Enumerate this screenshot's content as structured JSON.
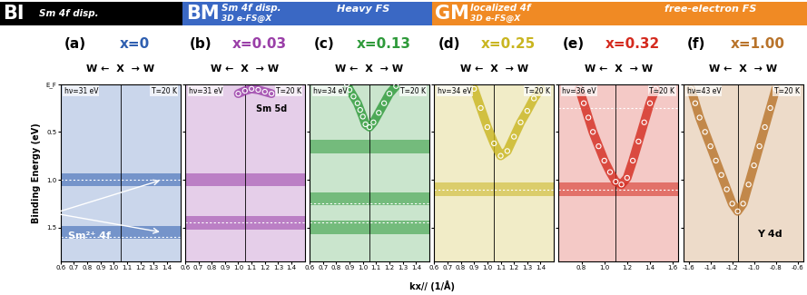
{
  "header": [
    {
      "tag": "BI",
      "lines": [
        "Sm 4f disp."
      ],
      "note": "",
      "color": "#000000",
      "span": 1
    },
    {
      "tag": "BM",
      "lines": [
        "Sm 4f disp.",
        "3D e-FS@X"
      ],
      "note": "Heavy FS",
      "color": "#3a68c4",
      "span": 2
    },
    {
      "tag": "GM",
      "lines": [
        "localized 4f",
        "3D e-FS@X"
      ],
      "note": "free-electron FS",
      "color": "#f08a24",
      "span": 3
    }
  ],
  "direction_label": "W ←  X  → W",
  "ylabel": "Binding Energy (eV)",
  "xlabel": "kx// (1/Å)",
  "chart_data": [
    {
      "type": "scatter",
      "label": "(a)",
      "title": "x=0",
      "color": "#2f5fb0",
      "photon_energy": "hν=31 eV",
      "temperature": "T=20 K",
      "x_point": 1.05,
      "xlim": [
        0.6,
        1.5
      ],
      "xticks": [
        0.6,
        0.7,
        0.8,
        0.9,
        {
          "value": 1.0,
          "label": "1.0"
        },
        1.1,
        1.2,
        1.3,
        1.4
      ],
      "ylim": [
        1.85,
        0
      ],
      "yticks": [
        {
          "value": 0,
          "label": "E_F"
        },
        0.5,
        {
          "value": 1.0,
          "label": "1.0"
        },
        1.5
      ],
      "bands": [
        1.0,
        1.55
      ],
      "dashed": [
        1.0,
        1.6
      ],
      "annotation": "Sm²⁺ 4f",
      "x": [],
      "y": [],
      "tick_labels": true
    },
    {
      "type": "scatter",
      "label": "(b)",
      "title": "x=0.03",
      "color": "#9a3fa8",
      "photon_energy": "hν=31 eV",
      "temperature": "T=20 K",
      "x_point": 1.05,
      "xlim": [
        0.6,
        1.5
      ],
      "xticks": [
        0.6,
        0.7,
        0.8,
        0.9,
        {
          "value": 1.0,
          "label": "1.0"
        },
        1.1,
        1.2,
        1.3,
        1.4
      ],
      "ylim": [
        1.85,
        0
      ],
      "yticks": [
        {
          "value": 0,
          "label": "E_F"
        },
        0.5,
        {
          "value": 1.0,
          "label": "1.0"
        },
        1.5
      ],
      "bands": [
        1.0,
        1.45
      ],
      "dashed": [
        1.45
      ],
      "annotation": "Sm 5d",
      "x": [
        1.0,
        1.05,
        1.1,
        1.15,
        1.2,
        1.25
      ],
      "y": [
        0.1,
        0.07,
        0.05,
        0.06,
        0.08,
        0.1
      ],
      "tick_labels": "x"
    },
    {
      "type": "scatter",
      "label": "(c)",
      "title": "x=0.13",
      "color": "#2e9a3a",
      "photon_energy": "hν=34 eV",
      "temperature": "T=20 K",
      "x_point": 1.05,
      "xlim": [
        0.6,
        1.5
      ],
      "xticks": [
        0.6,
        0.7,
        0.8,
        0.9,
        {
          "value": 1.0,
          "label": "1.0"
        },
        1.1,
        1.2,
        1.3,
        1.4
      ],
      "ylim": [
        1.85,
        0
      ],
      "yticks": [
        {
          "value": 0,
          "label": "E_F"
        },
        0.5,
        {
          "value": 1.0,
          "label": "1.0"
        },
        1.5
      ],
      "bands": [
        0.65,
        1.2,
        1.5
      ],
      "dashed": [
        1.25,
        1.45
      ],
      "annotation": "",
      "x": [
        0.88,
        0.9,
        0.93,
        0.96,
        0.98,
        1.0,
        1.02,
        1.05,
        1.08,
        1.12,
        1.16,
        1.2,
        1.25
      ],
      "y": [
        0.0,
        0.06,
        0.13,
        0.2,
        0.27,
        0.34,
        0.42,
        0.45,
        0.4,
        0.3,
        0.2,
        0.1,
        0.02
      ],
      "tick_labels": "x"
    },
    {
      "type": "scatter",
      "label": "(d)",
      "title": "x=0.25",
      "color": "#c9b520",
      "photon_energy": "hν=34 eV",
      "temperature": "T=20 K",
      "x_point": 1.05,
      "xlim": [
        0.6,
        1.5
      ],
      "xticks": [
        0.6,
        0.7,
        0.8,
        0.9,
        {
          "value": 1.0,
          "label": "1.0"
        },
        1.1,
        1.2,
        1.3,
        1.4
      ],
      "ylim": [
        1.85,
        0
      ],
      "yticks": [
        {
          "value": 0,
          "label": "E_F"
        },
        0.5,
        {
          "value": 1.0,
          "label": "1.0"
        },
        1.5
      ],
      "bands": [
        1.1
      ],
      "dashed": [
        1.1
      ],
      "annotation": "",
      "x": [
        0.9,
        0.95,
        1.0,
        1.05,
        1.1,
        1.15,
        1.2,
        1.25,
        1.3,
        1.35,
        1.4
      ],
      "y": [
        0.05,
        0.25,
        0.45,
        0.62,
        0.75,
        0.7,
        0.55,
        0.4,
        0.28,
        0.15,
        0.05
      ],
      "tick_labels": "x"
    },
    {
      "type": "scatter",
      "label": "(e)",
      "title": "x=0.32",
      "color": "#d42a1e",
      "photon_energy": "hν=36 eV",
      "temperature": "T=20 K",
      "x_point": 1.1,
      "xlim": [
        0.6,
        1.65
      ],
      "xticks": [
        0.8,
        {
          "value": 1.0,
          "label": "1.0"
        },
        1.2,
        1.4,
        1.6
      ],
      "ylim": [
        1.85,
        0
      ],
      "yticks": [
        {
          "value": 0,
          "label": "E_F"
        },
        0.5,
        {
          "value": 1.0,
          "label": "1.0"
        },
        1.5
      ],
      "bands": [
        1.1
      ],
      "dashed": [
        0.25,
        1.1
      ],
      "annotation": "",
      "x": [
        0.78,
        0.82,
        0.86,
        0.9,
        0.95,
        1.0,
        1.05,
        1.1,
        1.15,
        1.2,
        1.25,
        1.3,
        1.35,
        1.4,
        1.45
      ],
      "y": [
        0.05,
        0.2,
        0.35,
        0.5,
        0.65,
        0.8,
        0.92,
        1.02,
        1.05,
        0.98,
        0.8,
        0.6,
        0.4,
        0.2,
        0.05
      ],
      "tick_labels": "x"
    },
    {
      "type": "scatter",
      "label": "(f)",
      "title": "x=1.00",
      "color": "#b8732a",
      "photon_energy": "hν=43 eV",
      "temperature": "T=20 K",
      "x_point": -1.15,
      "xlim": [
        -1.65,
        -0.55
      ],
      "xticks": [
        -1.6,
        -1.4,
        -1.2,
        {
          "value": -1.0,
          "label": "-1.0"
        },
        -0.8,
        -0.6
      ],
      "ylim": [
        1.85,
        0
      ],
      "yticks": [
        {
          "value": 0,
          "label": "E_F"
        },
        0.5,
        {
          "value": 1.0,
          "label": "1.0"
        },
        1.5
      ],
      "bands": [],
      "dashed": [],
      "annotation": "Y 4d",
      "x": [
        -1.58,
        -1.54,
        -1.5,
        -1.45,
        -1.4,
        -1.35,
        -1.3,
        -1.25,
        -1.2,
        -1.15,
        -1.1,
        -1.05,
        -1.0,
        -0.95,
        -0.9,
        -0.85,
        -0.8
      ],
      "y": [
        0.05,
        0.2,
        0.35,
        0.5,
        0.65,
        0.8,
        0.95,
        1.1,
        1.25,
        1.33,
        1.25,
        1.05,
        0.85,
        0.65,
        0.45,
        0.25,
        0.05
      ],
      "tick_labels": "x"
    }
  ]
}
